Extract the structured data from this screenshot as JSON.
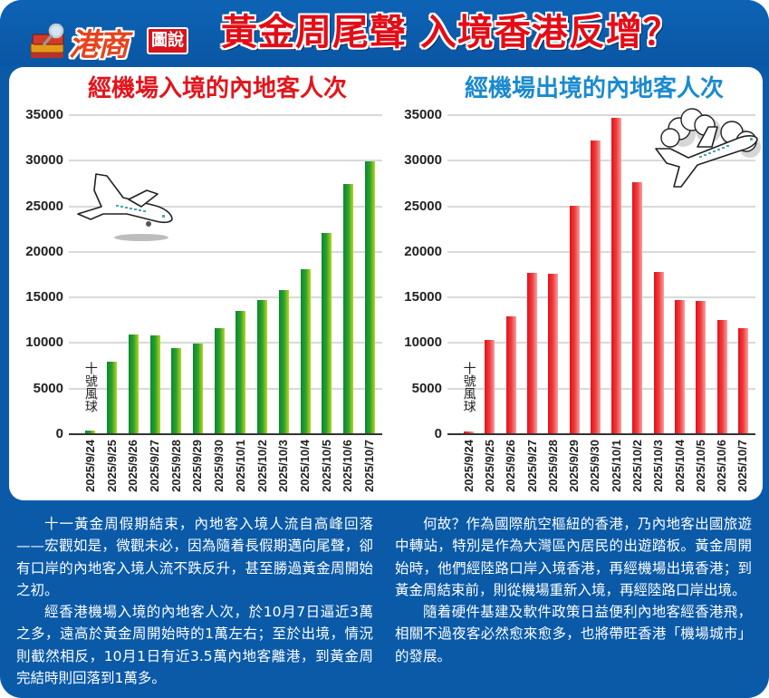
{
  "header": {
    "logo_main": "港商",
    "logo_tag": "圖說",
    "headline": "黃金周尾聲 入境香港反增？"
  },
  "colors": {
    "frame_blue": "#0a5aa8",
    "headline_red": "#e30d16",
    "left_title_red": "#e3141b",
    "right_title_blue": "#1a8ad0",
    "bar_green": "#078a2f",
    "bar_red": "#e4101a"
  },
  "annotation": "十號風球",
  "chart_data": [
    {
      "type": "bar",
      "title": "經機場入境的內地客人次",
      "xlabel": "",
      "ylabel": "",
      "ylim": [
        0,
        35000
      ],
      "yticks": [
        0,
        5000,
        10000,
        15000,
        20000,
        25000,
        30000,
        35000
      ],
      "grid": true,
      "categories": [
        "2025/9/24",
        "2025/9/25",
        "2025/9/26",
        "2025/9/27",
        "2025/9/28",
        "2025/9/29",
        "2025/9/30",
        "2025/10/1",
        "2025/10/2",
        "2025/10/3",
        "2025/10/4",
        "2025/10/5",
        "2025/10/6",
        "2025/10/7"
      ],
      "values": [
        400,
        8000,
        10900,
        10800,
        9400,
        9900,
        11600,
        13500,
        14700,
        15800,
        18100,
        22100,
        27400,
        29900
      ],
      "annotations": [
        {
          "category": "2025/9/24",
          "text": "十號風球"
        }
      ],
      "color": "#078a2f"
    },
    {
      "type": "bar",
      "title": "經機場出境的內地客人次",
      "xlabel": "",
      "ylabel": "",
      "ylim": [
        0,
        35000
      ],
      "yticks": [
        0,
        5000,
        10000,
        15000,
        20000,
        25000,
        30000,
        35000
      ],
      "grid": true,
      "categories": [
        "2025/9/24",
        "2025/9/25",
        "2025/9/26",
        "2025/9/27",
        "2025/9/28",
        "2025/9/29",
        "2025/9/30",
        "2025/10/1",
        "2025/10/2",
        "2025/10/3",
        "2025/10/4",
        "2025/10/5",
        "2025/10/6",
        "2025/10/7"
      ],
      "values": [
        300,
        10300,
        12900,
        17700,
        17600,
        25100,
        32200,
        34700,
        27600,
        17800,
        14700,
        14600,
        12500,
        11600
      ],
      "annotations": [
        {
          "category": "2025/9/24",
          "text": "十號風球"
        }
      ],
      "color": "#e4101a"
    }
  ],
  "article": {
    "left": [
      "十一黃金周假期結束，內地客入境人流自高峰回落——宏觀如是，微觀未必，因為隨着長假期邁向尾聲，卻有口岸的內地客入境人流不跌反升，甚至勝過黃金周開始之初。",
      "經香港機場入境的內地客人次，於10月7日逼近3萬之多，遠高於黃金周開始時的1萬左右；至於出境，情況則截然相反，10月1日有近3.5萬內地客離港，到黃金周完結時則回落到1萬多。"
    ],
    "right": [
      "何故？作為國際航空樞紐的香港，乃內地客出國旅遊中轉站，特別是作為大灣區內居民的出遊踏板。黃金周開始時，他們經陸路口岸入境香港，再經機場出境香港；到黃金周結束前，則從機場重新入境，再經陸路口岸出境。",
      "隨着硬件基建及軟件政策日益便利內地客經香港飛，相關不過夜客必然愈來愈多，也將帶旺香港「機場城市」的發展。"
    ]
  }
}
